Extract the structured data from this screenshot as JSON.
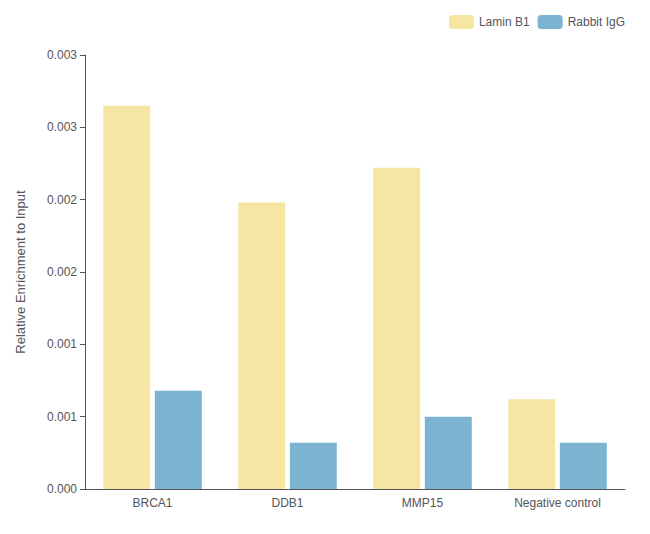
{
  "chart_data": {
    "type": "bar",
    "categories": [
      "BRCA1",
      "DDB1",
      "MMP15",
      "Negative control"
    ],
    "series": [
      {
        "name": "Lamin B1",
        "color": "#F5E6A3",
        "values": [
          0.00265,
          0.00198,
          0.00222,
          0.00062
        ]
      },
      {
        "name": "Rabbit IgG",
        "color": "#7BB3D0",
        "values": [
          0.00068,
          0.00032,
          0.0005,
          0.00032
        ]
      }
    ],
    "ylabel": "Relative Enrichment to Input",
    "ylim": [
      0,
      0.003
    ],
    "yticks": [
      {
        "value": 0.0,
        "label": "0.000"
      },
      {
        "value": 0.0005,
        "label": "0.001"
      },
      {
        "value": 0.001,
        "label": "0.001"
      },
      {
        "value": 0.0015,
        "label": "0.002"
      },
      {
        "value": 0.002,
        "label": "0.002"
      },
      {
        "value": 0.0025,
        "label": "0.003"
      },
      {
        "value": 0.003,
        "label": "0.003"
      }
    ],
    "grid": false,
    "legend": "upper right"
  }
}
